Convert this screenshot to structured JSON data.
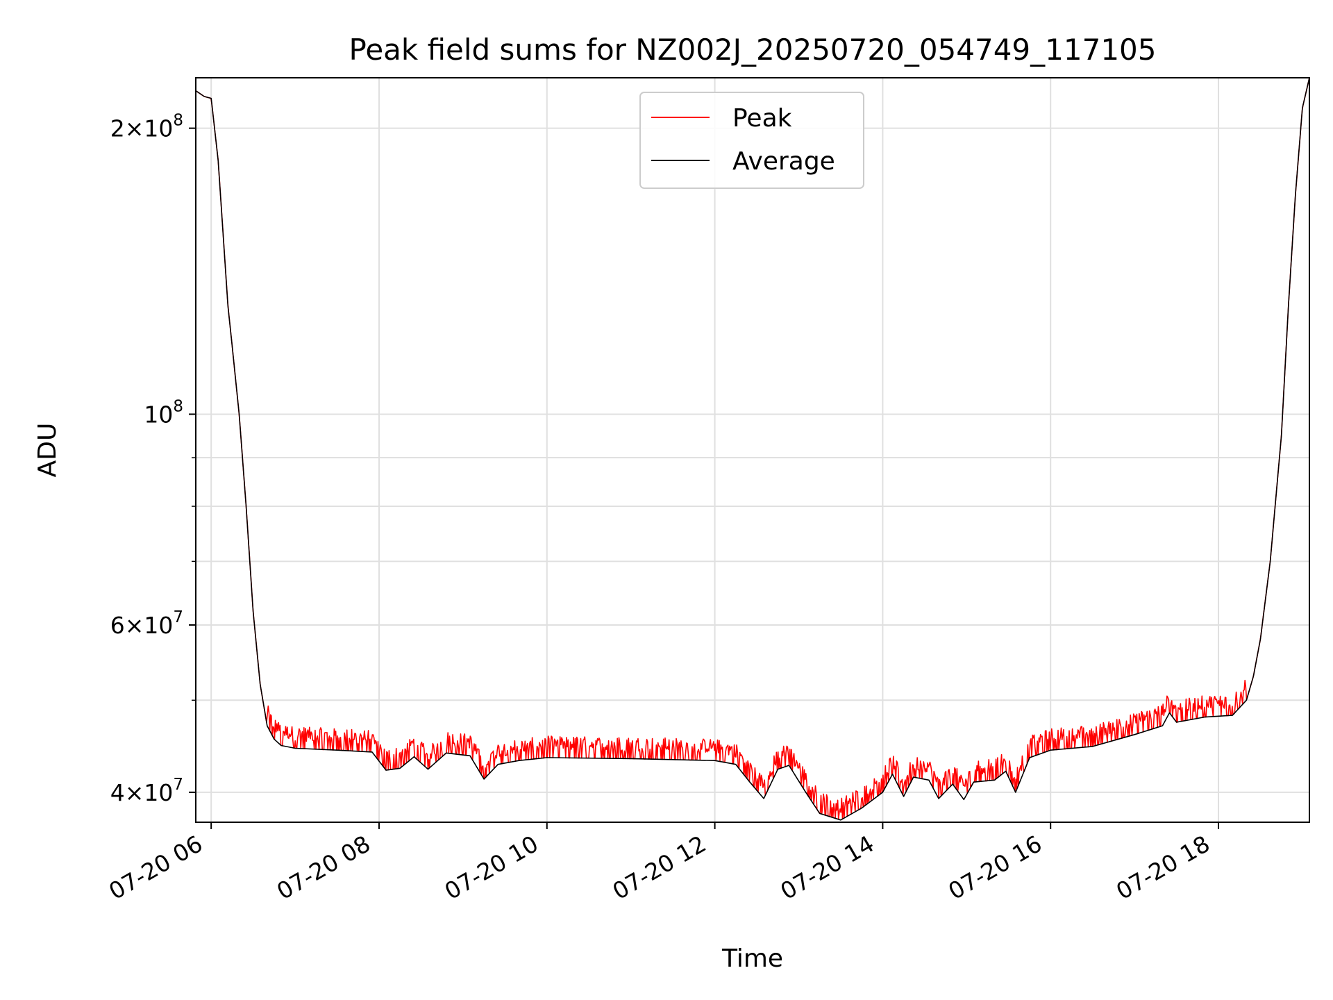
{
  "chart_data": {
    "type": "line",
    "title": "Peak field sums for NZ002J_20250720_054749_117105",
    "xlabel": "Time",
    "ylabel": "ADU",
    "yscale": "log",
    "grid": true,
    "legend_position": "top-center",
    "xlim": [
      "2025-07-20 05:49",
      "2025-07-20 19:05"
    ],
    "ylim": [
      37200000,
      226000000
    ],
    "x_ticks": [
      {
        "x": "2025-07-20 06:00",
        "label": "07-20 06"
      },
      {
        "x": "2025-07-20 08:00",
        "label": "07-20 08"
      },
      {
        "x": "2025-07-20 10:00",
        "label": "07-20 10"
      },
      {
        "x": "2025-07-20 12:00",
        "label": "07-20 12"
      },
      {
        "x": "2025-07-20 14:00",
        "label": "07-20 14"
      },
      {
        "x": "2025-07-20 16:00",
        "label": "07-20 16"
      },
      {
        "x": "2025-07-20 18:00",
        "label": "07-20 18"
      }
    ],
    "y_major_ticks": [
      {
        "value": 40000000,
        "base": "4",
        "exp": "7"
      },
      {
        "value": 60000000,
        "base": "6",
        "exp": "7"
      },
      {
        "value": 100000000,
        "base": "",
        "exp": "8"
      },
      {
        "value": 200000000,
        "base": "2",
        "exp": "8"
      }
    ],
    "y_minor_ticks": [
      50000000,
      70000000,
      80000000,
      90000000
    ],
    "series": [
      {
        "name": "Peak",
        "color": "#ff0000",
        "jitter": 1.045,
        "points": [
          [
            "2025-07-20 05:49",
            219000000
          ],
          [
            "2025-07-20 05:55",
            216000000
          ],
          [
            "2025-07-20 06:00",
            215000000
          ],
          [
            "2025-07-20 06:05",
            185000000
          ],
          [
            "2025-07-20 06:12",
            130000000
          ],
          [
            "2025-07-20 06:15",
            118000000
          ],
          [
            "2025-07-20 06:20",
            100000000
          ],
          [
            "2025-07-20 06:25",
            80000000
          ],
          [
            "2025-07-20 06:30",
            62000000
          ],
          [
            "2025-07-20 06:35",
            52000000
          ],
          [
            "2025-07-20 06:40",
            47000000
          ],
          [
            "2025-07-20 06:45",
            45500000
          ],
          [
            "2025-07-20 06:50",
            44800000
          ],
          [
            "2025-07-20 07:00",
            44500000
          ],
          [
            "2025-07-20 07:30",
            44300000
          ],
          [
            "2025-07-20 07:55",
            44100000
          ],
          [
            "2025-07-20 08:05",
            42200000
          ],
          [
            "2025-07-20 08:15",
            42400000
          ],
          [
            "2025-07-20 08:25",
            43600000
          ],
          [
            "2025-07-20 08:35",
            42300000
          ],
          [
            "2025-07-20 08:48",
            44000000
          ],
          [
            "2025-07-20 09:05",
            43700000
          ],
          [
            "2025-07-20 09:15",
            41300000
          ],
          [
            "2025-07-20 09:25",
            42800000
          ],
          [
            "2025-07-20 09:40",
            43200000
          ],
          [
            "2025-07-20 10:00",
            43500000
          ],
          [
            "2025-07-20 11:00",
            43400000
          ],
          [
            "2025-07-20 12:00",
            43200000
          ],
          [
            "2025-07-20 12:15",
            42800000
          ],
          [
            "2025-07-20 12:25",
            41000000
          ],
          [
            "2025-07-20 12:35",
            39400000
          ],
          [
            "2025-07-20 12:45",
            42300000
          ],
          [
            "2025-07-20 12:53",
            42700000
          ],
          [
            "2025-07-20 13:05",
            40000000
          ],
          [
            "2025-07-20 13:15",
            38000000
          ],
          [
            "2025-07-20 13:30",
            37400000
          ],
          [
            "2025-07-20 13:45",
            38500000
          ],
          [
            "2025-07-20 14:00",
            40000000
          ],
          [
            "2025-07-20 14:07",
            41800000
          ],
          [
            "2025-07-20 14:15",
            39600000
          ],
          [
            "2025-07-20 14:22",
            41500000
          ],
          [
            "2025-07-20 14:33",
            41200000
          ],
          [
            "2025-07-20 14:40",
            39400000
          ],
          [
            "2025-07-20 14:50",
            40800000
          ],
          [
            "2025-07-20 14:58",
            39300000
          ],
          [
            "2025-07-20 15:05",
            41000000
          ],
          [
            "2025-07-20 15:20",
            41200000
          ],
          [
            "2025-07-20 15:28",
            42100000
          ],
          [
            "2025-07-20 15:35",
            40000000
          ],
          [
            "2025-07-20 15:45",
            43500000
          ],
          [
            "2025-07-20 16:00",
            44300000
          ],
          [
            "2025-07-20 16:30",
            44700000
          ],
          [
            "2025-07-20 17:00",
            46000000
          ],
          [
            "2025-07-20 17:20",
            47000000
          ],
          [
            "2025-07-20 17:25",
            48500000
          ],
          [
            "2025-07-20 17:30",
            47400000
          ],
          [
            "2025-07-20 17:50",
            48000000
          ],
          [
            "2025-07-20 18:10",
            48200000
          ],
          [
            "2025-07-20 18:20",
            50000000
          ],
          [
            "2025-07-20 18:25",
            53000000
          ],
          [
            "2025-07-20 18:30",
            58000000
          ],
          [
            "2025-07-20 18:37",
            70000000
          ],
          [
            "2025-07-20 18:45",
            95000000
          ],
          [
            "2025-07-20 18:50",
            130000000
          ],
          [
            "2025-07-20 18:55",
            170000000
          ],
          [
            "2025-07-20 19:00",
            210000000
          ],
          [
            "2025-07-20 19:05",
            226000000
          ]
        ]
      },
      {
        "name": "Average",
        "color": "#000000",
        "points": [
          [
            "2025-07-20 05:49",
            219000000
          ],
          [
            "2025-07-20 05:55",
            216000000
          ],
          [
            "2025-07-20 06:00",
            215000000
          ],
          [
            "2025-07-20 06:05",
            185000000
          ],
          [
            "2025-07-20 06:12",
            130000000
          ],
          [
            "2025-07-20 06:15",
            118000000
          ],
          [
            "2025-07-20 06:20",
            100000000
          ],
          [
            "2025-07-20 06:25",
            80000000
          ],
          [
            "2025-07-20 06:30",
            62000000
          ],
          [
            "2025-07-20 06:35",
            52000000
          ],
          [
            "2025-07-20 06:40",
            47000000
          ],
          [
            "2025-07-20 06:45",
            45500000
          ],
          [
            "2025-07-20 06:50",
            44800000
          ],
          [
            "2025-07-20 07:00",
            44500000
          ],
          [
            "2025-07-20 07:30",
            44300000
          ],
          [
            "2025-07-20 07:55",
            44100000
          ],
          [
            "2025-07-20 08:05",
            42200000
          ],
          [
            "2025-07-20 08:15",
            42400000
          ],
          [
            "2025-07-20 08:25",
            43600000
          ],
          [
            "2025-07-20 08:35",
            42300000
          ],
          [
            "2025-07-20 08:48",
            44000000
          ],
          [
            "2025-07-20 09:05",
            43700000
          ],
          [
            "2025-07-20 09:15",
            41300000
          ],
          [
            "2025-07-20 09:25",
            42800000
          ],
          [
            "2025-07-20 09:40",
            43200000
          ],
          [
            "2025-07-20 10:00",
            43500000
          ],
          [
            "2025-07-20 11:00",
            43400000
          ],
          [
            "2025-07-20 12:00",
            43200000
          ],
          [
            "2025-07-20 12:15",
            42800000
          ],
          [
            "2025-07-20 12:25",
            41000000
          ],
          [
            "2025-07-20 12:35",
            39400000
          ],
          [
            "2025-07-20 12:45",
            42300000
          ],
          [
            "2025-07-20 12:53",
            42700000
          ],
          [
            "2025-07-20 13:05",
            40000000
          ],
          [
            "2025-07-20 13:15",
            38000000
          ],
          [
            "2025-07-20 13:30",
            37400000
          ],
          [
            "2025-07-20 13:45",
            38500000
          ],
          [
            "2025-07-20 14:00",
            40000000
          ],
          [
            "2025-07-20 14:07",
            41800000
          ],
          [
            "2025-07-20 14:15",
            39600000
          ],
          [
            "2025-07-20 14:22",
            41500000
          ],
          [
            "2025-07-20 14:33",
            41200000
          ],
          [
            "2025-07-20 14:40",
            39400000
          ],
          [
            "2025-07-20 14:50",
            40800000
          ],
          [
            "2025-07-20 14:58",
            39300000
          ],
          [
            "2025-07-20 15:05",
            41000000
          ],
          [
            "2025-07-20 15:20",
            41200000
          ],
          [
            "2025-07-20 15:28",
            42100000
          ],
          [
            "2025-07-20 15:35",
            40000000
          ],
          [
            "2025-07-20 15:45",
            43500000
          ],
          [
            "2025-07-20 16:00",
            44300000
          ],
          [
            "2025-07-20 16:30",
            44700000
          ],
          [
            "2025-07-20 17:00",
            46000000
          ],
          [
            "2025-07-20 17:20",
            47000000
          ],
          [
            "2025-07-20 17:25",
            48500000
          ],
          [
            "2025-07-20 17:30",
            47400000
          ],
          [
            "2025-07-20 17:50",
            48000000
          ],
          [
            "2025-07-20 18:10",
            48200000
          ],
          [
            "2025-07-20 18:20",
            50000000
          ],
          [
            "2025-07-20 18:25",
            53000000
          ],
          [
            "2025-07-20 18:30",
            58000000
          ],
          [
            "2025-07-20 18:37",
            70000000
          ],
          [
            "2025-07-20 18:45",
            95000000
          ],
          [
            "2025-07-20 18:50",
            130000000
          ],
          [
            "2025-07-20 18:55",
            170000000
          ],
          [
            "2025-07-20 19:00",
            210000000
          ],
          [
            "2025-07-20 19:05",
            226000000
          ]
        ]
      }
    ]
  }
}
